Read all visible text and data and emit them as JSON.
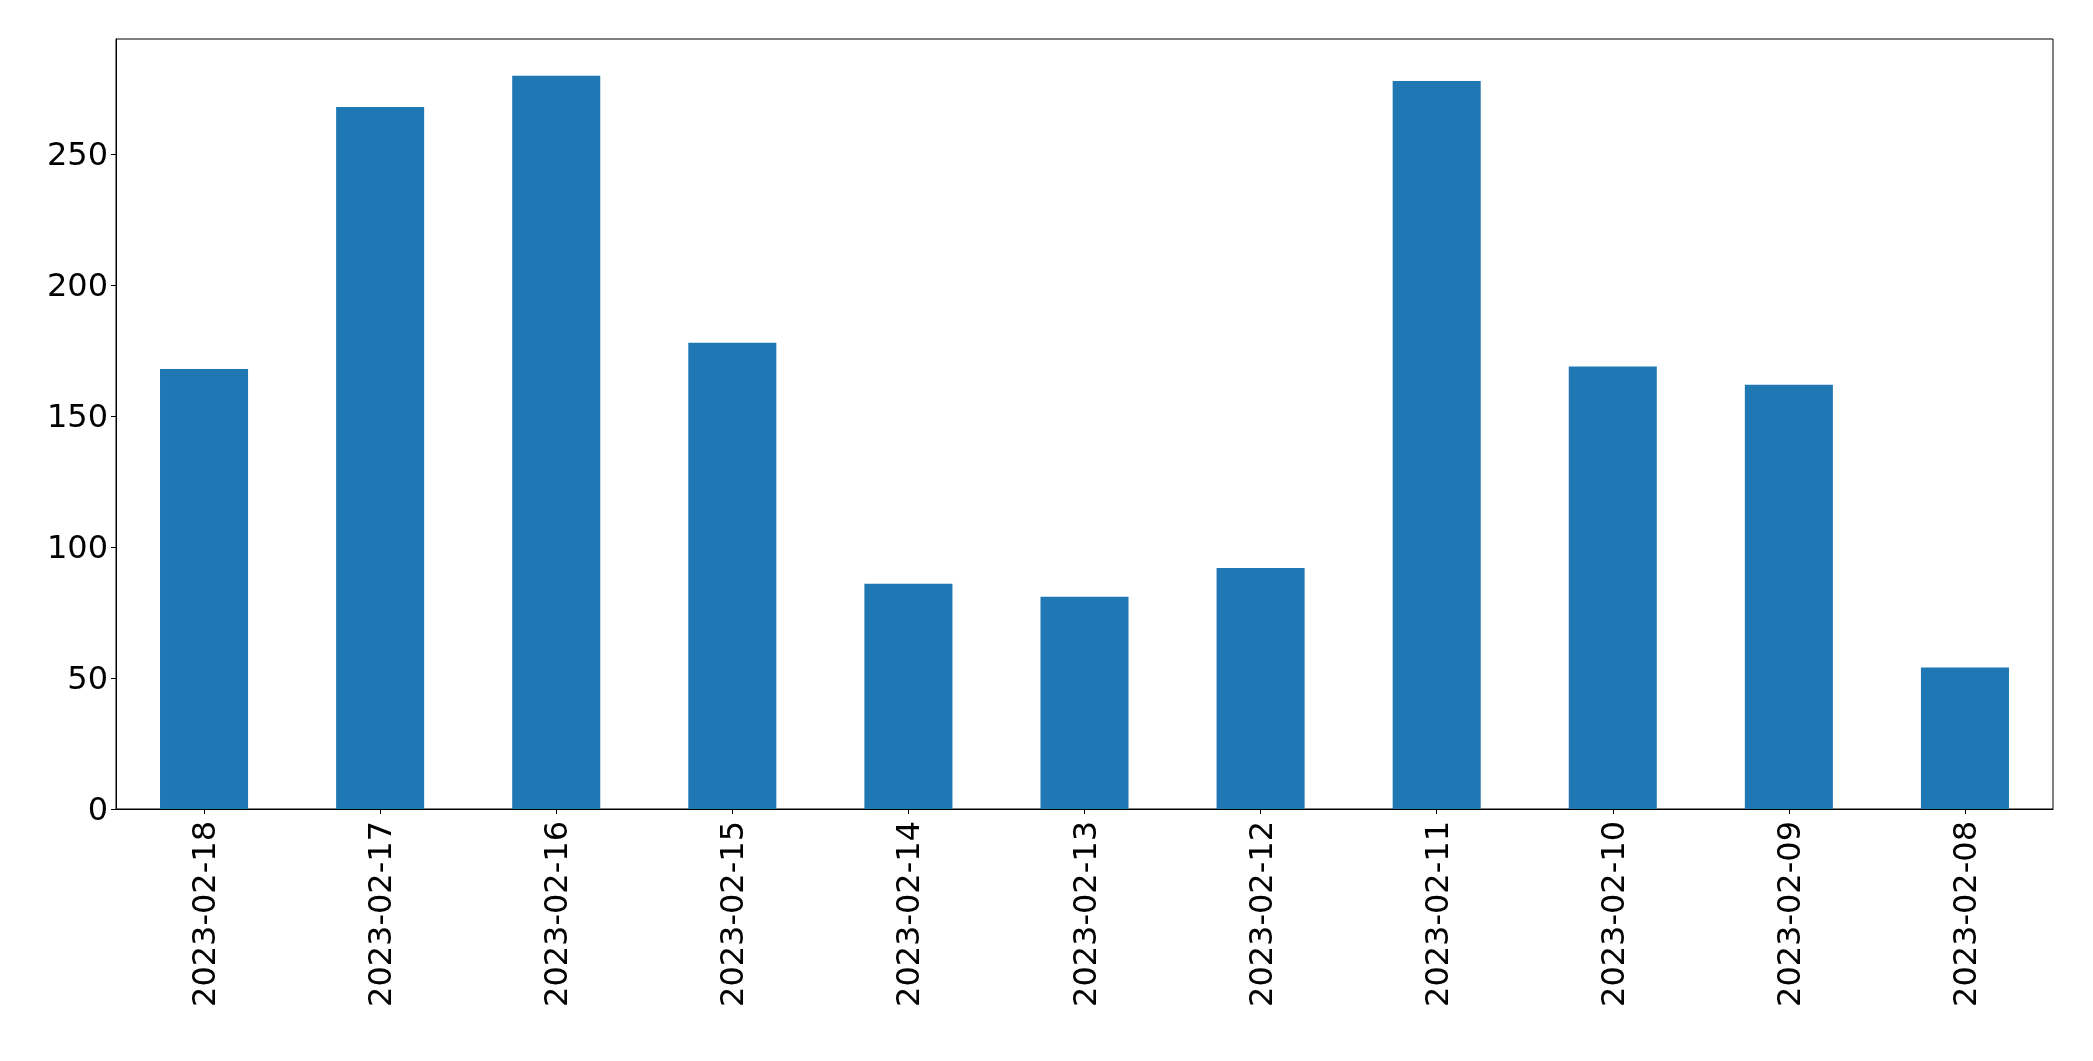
{
  "chart_data": {
    "type": "bar",
    "categories": [
      "2023-02-18",
      "2023-02-17",
      "2023-02-16",
      "2023-02-15",
      "2023-02-14",
      "2023-02-13",
      "2023-02-12",
      "2023-02-11",
      "2023-02-10",
      "2023-02-09",
      "2023-02-08"
    ],
    "values": [
      168,
      268,
      280,
      178,
      86,
      81,
      92,
      278,
      169,
      162,
      54
    ],
    "color": "#1f77b4",
    "ylim": [
      0,
      294
    ],
    "yticks": [
      0,
      50,
      100,
      150,
      200,
      250
    ],
    "grid": false
  }
}
